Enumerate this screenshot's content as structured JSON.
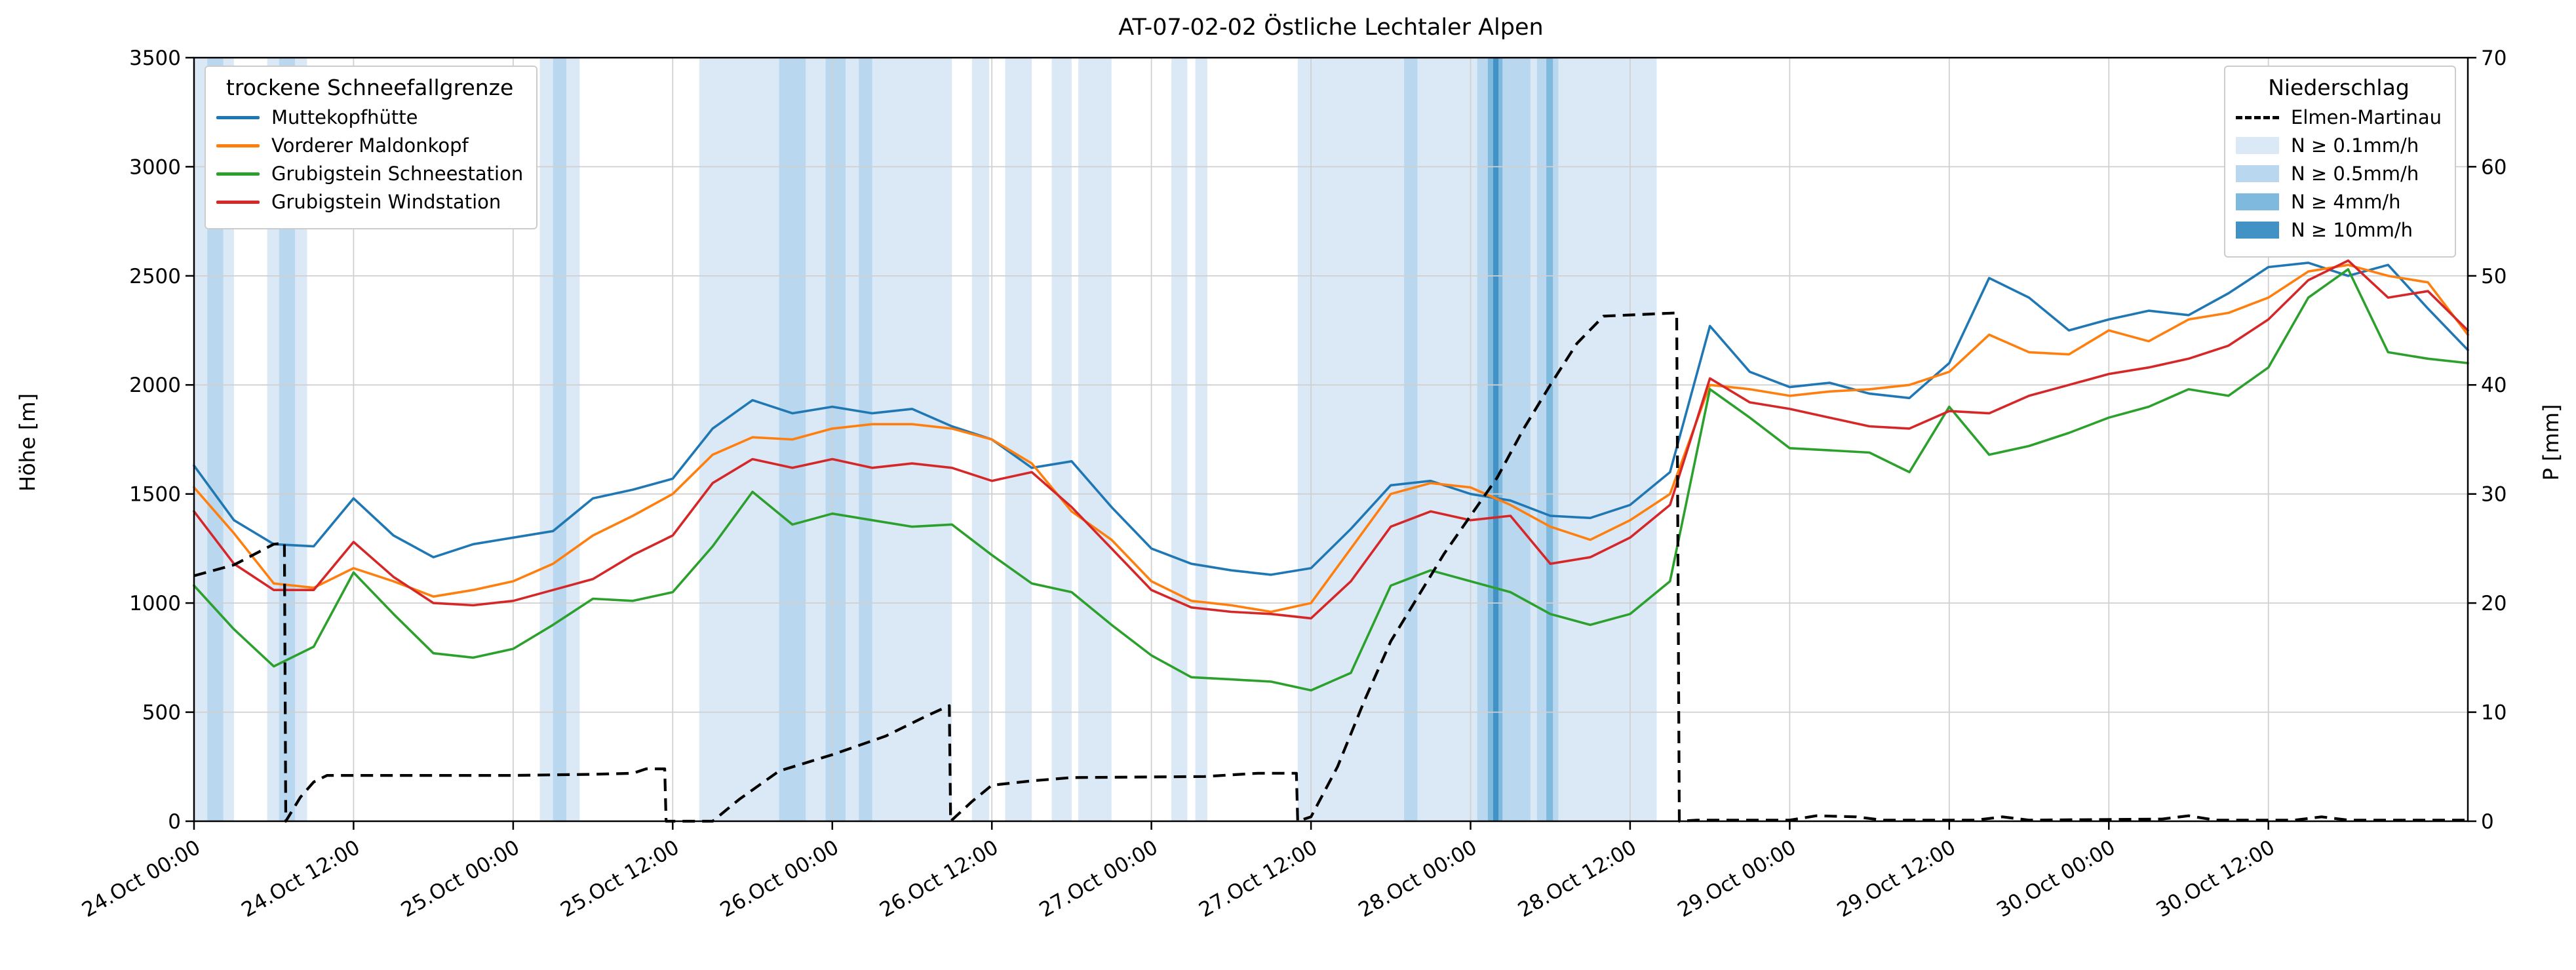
{
  "chart_data": {
    "type": "line",
    "title": "AT-07-02-02 Östliche Lechtaler Alpen",
    "grid": true,
    "axes": {
      "left": {
        "label": "Höhe [m]",
        "min": 0,
        "max": 3500,
        "ticks": [
          0,
          500,
          1000,
          1500,
          2000,
          2500,
          3000,
          3500
        ]
      },
      "right": {
        "label": "P [mm]",
        "min": 0,
        "max": 70,
        "ticks": [
          0,
          10,
          20,
          30,
          40,
          50,
          60,
          70
        ]
      },
      "x": {
        "min_hours": 0,
        "max_hours": 171,
        "ticks": [
          {
            "t": 0,
            "label": "24.Oct 00:00"
          },
          {
            "t": 12,
            "label": "24.Oct 12:00"
          },
          {
            "t": 24,
            "label": "25.Oct 00:00"
          },
          {
            "t": 36,
            "label": "25.Oct 12:00"
          },
          {
            "t": 48,
            "label": "26.Oct 00:00"
          },
          {
            "t": 60,
            "label": "26.Oct 12:00"
          },
          {
            "t": 72,
            "label": "27.Oct 00:00"
          },
          {
            "t": 84,
            "label": "27.Oct 12:00"
          },
          {
            "t": 96,
            "label": "28.Oct 00:00"
          },
          {
            "t": 108,
            "label": "28.Oct 12:00"
          },
          {
            "t": 120,
            "label": "29.Oct 00:00"
          },
          {
            "t": 132,
            "label": "29.Oct 12:00"
          },
          {
            "t": 144,
            "label": "30.Oct 00:00"
          },
          {
            "t": 156,
            "label": "30.Oct 12:00"
          }
        ]
      }
    },
    "sample_step_hours": 3,
    "series": [
      {
        "name": "Muttekopfhütte",
        "color": "#1f77b4",
        "axis": "left",
        "values": [
          1630,
          1380,
          1270,
          1260,
          1480,
          1310,
          1210,
          1270,
          1300,
          1330,
          1480,
          1520,
          1570,
          1800,
          1930,
          1870,
          1900,
          1870,
          1890,
          1810,
          1750,
          1620,
          1650,
          1440,
          1250,
          1180,
          1150,
          1130,
          1160,
          1340,
          1540,
          1560,
          1500,
          1470,
          1400,
          1390,
          1450,
          1600,
          2270,
          2060,
          1990,
          2010,
          1960,
          1940,
          2100,
          2490,
          2400,
          2250,
          2300,
          2340,
          2320,
          2420,
          2540,
          2560,
          2500,
          2550,
          2350,
          2160
        ]
      },
      {
        "name": "Vorderer Maldonkopf",
        "color": "#ff7f0e",
        "axis": "left",
        "values": [
          1530,
          1320,
          1090,
          1070,
          1160,
          1100,
          1030,
          1060,
          1100,
          1180,
          1310,
          1400,
          1500,
          1680,
          1760,
          1750,
          1800,
          1820,
          1820,
          1800,
          1750,
          1640,
          1420,
          1290,
          1100,
          1010,
          990,
          960,
          1000,
          1250,
          1500,
          1550,
          1530,
          1450,
          1350,
          1290,
          1380,
          1500,
          2000,
          1980,
          1950,
          1970,
          1980,
          2000,
          2060,
          2230,
          2150,
          2140,
          2250,
          2200,
          2300,
          2330,
          2400,
          2520,
          2550,
          2500,
          2470,
          2230
        ]
      },
      {
        "name": "Grubigstein Schneestation",
        "color": "#2ca02c",
        "axis": "left",
        "values": [
          1080,
          880,
          710,
          800,
          1140,
          950,
          770,
          750,
          790,
          900,
          1020,
          1010,
          1050,
          1260,
          1510,
          1360,
          1410,
          1380,
          1350,
          1360,
          1220,
          1090,
          1050,
          900,
          760,
          660,
          650,
          640,
          600,
          680,
          1080,
          1150,
          1100,
          1050,
          950,
          900,
          950,
          1100,
          1980,
          1850,
          1710,
          1700,
          1690,
          1600,
          1900,
          1680,
          1720,
          1780,
          1850,
          1900,
          1980,
          1950,
          2080,
          2400,
          2530,
          2150,
          2120,
          2100
        ]
      },
      {
        "name": "Grubigstein Windstation",
        "color": "#d62728",
        "axis": "left",
        "values": [
          1420,
          1180,
          1060,
          1060,
          1280,
          1120,
          1000,
          990,
          1010,
          1060,
          1110,
          1220,
          1310,
          1550,
          1660,
          1620,
          1660,
          1620,
          1640,
          1620,
          1560,
          1600,
          1440,
          1250,
          1060,
          980,
          960,
          950,
          930,
          1100,
          1350,
          1420,
          1380,
          1400,
          1180,
          1210,
          1300,
          1450,
          2030,
          1920,
          1890,
          1850,
          1810,
          1800,
          1880,
          1870,
          1950,
          2000,
          2050,
          2080,
          2120,
          2180,
          2300,
          2480,
          2570,
          2400,
          2430,
          2250
        ]
      }
    ],
    "precip_line": {
      "name": "Elmen-Martinau",
      "color": "#000000",
      "style": "dashed",
      "axis": "right",
      "points": [
        [
          0,
          22.5
        ],
        [
          3,
          23.5
        ],
        [
          6,
          25.4
        ],
        [
          6.8,
          25.5
        ],
        [
          6.9,
          0
        ],
        [
          8,
          2.2
        ],
        [
          9,
          3.6
        ],
        [
          10,
          4.2
        ],
        [
          24,
          4.2
        ],
        [
          30,
          4.3
        ],
        [
          33,
          4.4
        ],
        [
          34,
          4.8
        ],
        [
          35.4,
          4.8
        ],
        [
          35.5,
          0
        ],
        [
          39,
          0
        ],
        [
          41,
          2
        ],
        [
          44,
          4.6
        ],
        [
          48,
          6.1
        ],
        [
          52,
          7.8
        ],
        [
          55,
          9.6
        ],
        [
          56.8,
          10.6
        ],
        [
          56.9,
          0
        ],
        [
          58.5,
          1.8
        ],
        [
          60,
          3.3
        ],
        [
          63,
          3.7
        ],
        [
          66,
          4.0
        ],
        [
          76,
          4.1
        ],
        [
          80,
          4.4
        ],
        [
          82.9,
          4.4
        ],
        [
          83,
          0
        ],
        [
          84,
          0.4
        ],
        [
          86,
          5
        ],
        [
          88,
          11
        ],
        [
          90,
          16.5
        ],
        [
          92,
          20.5
        ],
        [
          94,
          24.5
        ],
        [
          96,
          28
        ],
        [
          98,
          31.5
        ],
        [
          100,
          36
        ],
        [
          102,
          40
        ],
        [
          104,
          43.8
        ],
        [
          106,
          46.3
        ],
        [
          111.5,
          46.6
        ],
        [
          111.7,
          0
        ],
        [
          113,
          0.1
        ],
        [
          120,
          0.1
        ],
        [
          122,
          0.5
        ],
        [
          125,
          0.4
        ],
        [
          127,
          0.1
        ],
        [
          134,
          0.1
        ],
        [
          136,
          0.4
        ],
        [
          138,
          0.1
        ],
        [
          148,
          0.2
        ],
        [
          150,
          0.5
        ],
        [
          152,
          0.1
        ],
        [
          158,
          0.1
        ],
        [
          160,
          0.4
        ],
        [
          162,
          0.1
        ],
        [
          171,
          0.1
        ]
      ]
    },
    "precip_bands": {
      "levels": [
        {
          "label": "N ≥ 0.1mm/h",
          "color": "#dbe9f6"
        },
        {
          "label": "N ≥ 0.5mm/h",
          "color": "#b9d7ee"
        },
        {
          "label": "N ≥ 4mm/h",
          "color": "#7fb9de"
        },
        {
          "label": "N ≥ 10mm/h",
          "color": "#4292c6"
        }
      ],
      "bands": [
        {
          "s": 0,
          "e": 3,
          "l": 0
        },
        {
          "s": 1,
          "e": 2.2,
          "l": 1
        },
        {
          "s": 5.5,
          "e": 8.5,
          "l": 0
        },
        {
          "s": 6.4,
          "e": 7.6,
          "l": 1
        },
        {
          "s": 26,
          "e": 29,
          "l": 0
        },
        {
          "s": 27,
          "e": 28,
          "l": 1
        },
        {
          "s": 38,
          "e": 57,
          "l": 0
        },
        {
          "s": 44,
          "e": 46,
          "l": 1
        },
        {
          "s": 47.5,
          "e": 49,
          "l": 1
        },
        {
          "s": 50,
          "e": 51,
          "l": 1
        },
        {
          "s": 58.5,
          "e": 59.8,
          "l": 0
        },
        {
          "s": 61,
          "e": 63,
          "l": 0
        },
        {
          "s": 64.5,
          "e": 66,
          "l": 0
        },
        {
          "s": 66.5,
          "e": 69,
          "l": 0
        },
        {
          "s": 73.5,
          "e": 74.7,
          "l": 0
        },
        {
          "s": 75.3,
          "e": 76.2,
          "l": 0
        },
        {
          "s": 83,
          "e": 110,
          "l": 0
        },
        {
          "s": 91,
          "e": 92,
          "l": 1
        },
        {
          "s": 96.5,
          "e": 100.5,
          "l": 1
        },
        {
          "s": 97.3,
          "e": 98.4,
          "l": 2
        },
        {
          "s": 97.7,
          "e": 98.1,
          "l": 3
        },
        {
          "s": 101,
          "e": 102.6,
          "l": 1
        },
        {
          "s": 101.7,
          "e": 102.2,
          "l": 2
        }
      ]
    },
    "legends": {
      "snow": {
        "title": "trockene Schneefallgrenze"
      },
      "precip": {
        "title": "Niederschlag"
      }
    }
  }
}
